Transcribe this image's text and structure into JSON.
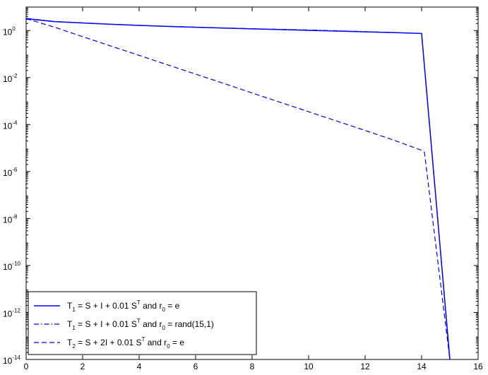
{
  "chart_data": {
    "type": "line",
    "title": "",
    "xlabel": "",
    "ylabel": "",
    "xlim": [
      0,
      16
    ],
    "ylim": [
      1e-14,
      10
    ],
    "yscale": "log",
    "grid": false,
    "legend_position": "bottom-left",
    "x_ticks": [
      "0",
      "2",
      "4",
      "6",
      "8",
      "10",
      "12",
      "14",
      "16"
    ],
    "y_ticks": [
      {
        "value": 1.0,
        "base": "10",
        "exp": "0"
      },
      {
        "value": 0.01,
        "base": "10",
        "exp": "-2"
      },
      {
        "value": 0.0001,
        "base": "10",
        "exp": "-4"
      },
      {
        "value": 1e-06,
        "base": "10",
        "exp": "-6"
      },
      {
        "value": 1e-08,
        "base": "10",
        "exp": "-8"
      },
      {
        "value": 1e-10,
        "base": "10",
        "exp": "-10"
      },
      {
        "value": 1e-12,
        "base": "10",
        "exp": "-12"
      },
      {
        "value": 1e-14,
        "base": "10",
        "exp": "-14"
      }
    ],
    "line_color": "#0000ff",
    "series": [
      {
        "style": "solid",
        "legend": {
          "T": "T",
          "sub": "1",
          "mid": " = S + I + 0.01 S",
          "sup": "T",
          "tail": " and r",
          "rsub": "0",
          "end": " = e"
        },
        "points": [
          [
            0,
            3.2
          ],
          [
            1,
            2.4
          ],
          [
            2,
            2.1
          ],
          [
            3,
            1.85
          ],
          [
            4,
            1.65
          ],
          [
            5,
            1.5
          ],
          [
            6,
            1.38
          ],
          [
            7,
            1.27
          ],
          [
            8,
            1.18
          ],
          [
            9,
            1.1
          ],
          [
            10,
            1.02
          ],
          [
            11,
            0.95
          ],
          [
            12,
            0.88
          ],
          [
            13,
            0.82
          ],
          [
            14,
            0.75
          ],
          [
            15,
            1e-14
          ]
        ]
      },
      {
        "style": "dashdot",
        "legend": {
          "T": "T",
          "sub": "1",
          "mid": " = S + I + 0.01 S",
          "sup": "T",
          "tail": " and r",
          "rsub": "0",
          "end": " = rand(15,1)"
        },
        "points": [
          [
            0,
            3.3
          ],
          [
            1,
            2.45
          ],
          [
            2,
            2.12
          ],
          [
            3,
            1.87
          ],
          [
            4,
            1.67
          ],
          [
            5,
            1.52
          ],
          [
            6,
            1.4
          ],
          [
            7,
            1.29
          ],
          [
            8,
            1.2
          ],
          [
            9,
            1.13
          ],
          [
            10,
            1.06
          ],
          [
            11,
            0.98
          ],
          [
            12,
            0.9
          ],
          [
            13,
            0.83
          ],
          [
            14,
            0.76
          ],
          [
            15,
            1e-14
          ]
        ]
      },
      {
        "style": "dashed",
        "legend": {
          "T": "T",
          "sub": "2",
          "mid": " = S + 2I + 0.01 S",
          "sup": "T",
          "tail": " and r",
          "rsub": "0",
          "end": " = e"
        },
        "points": [
          [
            0,
            3.2
          ],
          [
            1,
            1.4
          ],
          [
            2,
            0.55
          ],
          [
            3,
            0.22
          ],
          [
            4,
            0.088
          ],
          [
            5,
            0.035
          ],
          [
            6,
            0.014
          ],
          [
            7,
            0.0056
          ],
          [
            8,
            0.0022
          ],
          [
            9,
            0.00088
          ],
          [
            10,
            0.00035
          ],
          [
            11,
            0.00014
          ],
          [
            12,
            5.6e-05
          ],
          [
            13,
            2.2e-05
          ],
          [
            14,
            8e-06
          ],
          [
            14.1,
            6.5e-06
          ],
          [
            15,
            1e-14
          ]
        ]
      }
    ]
  }
}
